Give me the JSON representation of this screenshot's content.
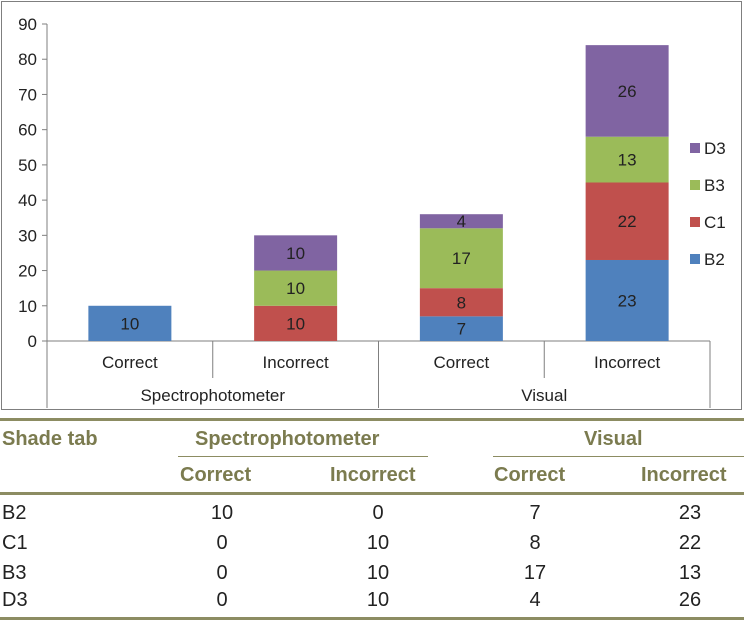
{
  "chart_data": {
    "type": "bar",
    "stacked": true,
    "categories": [
      "Correct",
      "Incorrect",
      "Correct",
      "Incorrect"
    ],
    "groups": [
      {
        "label": "Spectrophotometer",
        "categories": [
          "Correct",
          "Incorrect"
        ]
      },
      {
        "label": "Visual",
        "categories": [
          "Correct",
          "Incorrect"
        ]
      }
    ],
    "series": [
      {
        "name": "B2",
        "color": "#4f81bd",
        "values": [
          10,
          0,
          7,
          23
        ]
      },
      {
        "name": "C1",
        "color": "#c0504d",
        "values": [
          0,
          10,
          8,
          22
        ]
      },
      {
        "name": "B3",
        "color": "#9bbb59",
        "values": [
          0,
          10,
          17,
          13
        ]
      },
      {
        "name": "D3",
        "color": "#8064a2",
        "values": [
          0,
          10,
          4,
          26
        ]
      }
    ],
    "y_ticks": [
      "0",
      "10",
      "20",
      "30",
      "40",
      "50",
      "60",
      "70",
      "80",
      "90"
    ],
    "ylim": [
      0,
      90
    ],
    "legend": "right",
    "legend_order": [
      "D3",
      "B3",
      "C1",
      "B2"
    ],
    "grid": false
  },
  "table": {
    "header_shade": "Shade tab",
    "group_spectro": "Spectrophotometer",
    "group_visual": "Visual",
    "sub_correct_1": "Correct",
    "sub_incorrect_1": "Incorrect",
    "sub_correct_2": "Correct",
    "sub_incorrect_2": "Incorrect",
    "rows": [
      {
        "shade": "B2",
        "values": [
          "10",
          "0",
          "7",
          "23"
        ]
      },
      {
        "shade": "C1",
        "values": [
          "0",
          "10",
          "8",
          "22"
        ]
      },
      {
        "shade": "B3",
        "values": [
          "0",
          "10",
          "17",
          "13"
        ]
      },
      {
        "shade": "D3",
        "values": [
          "0",
          "10",
          "4",
          "26"
        ]
      }
    ],
    "header_color": "#7b7b4f"
  }
}
